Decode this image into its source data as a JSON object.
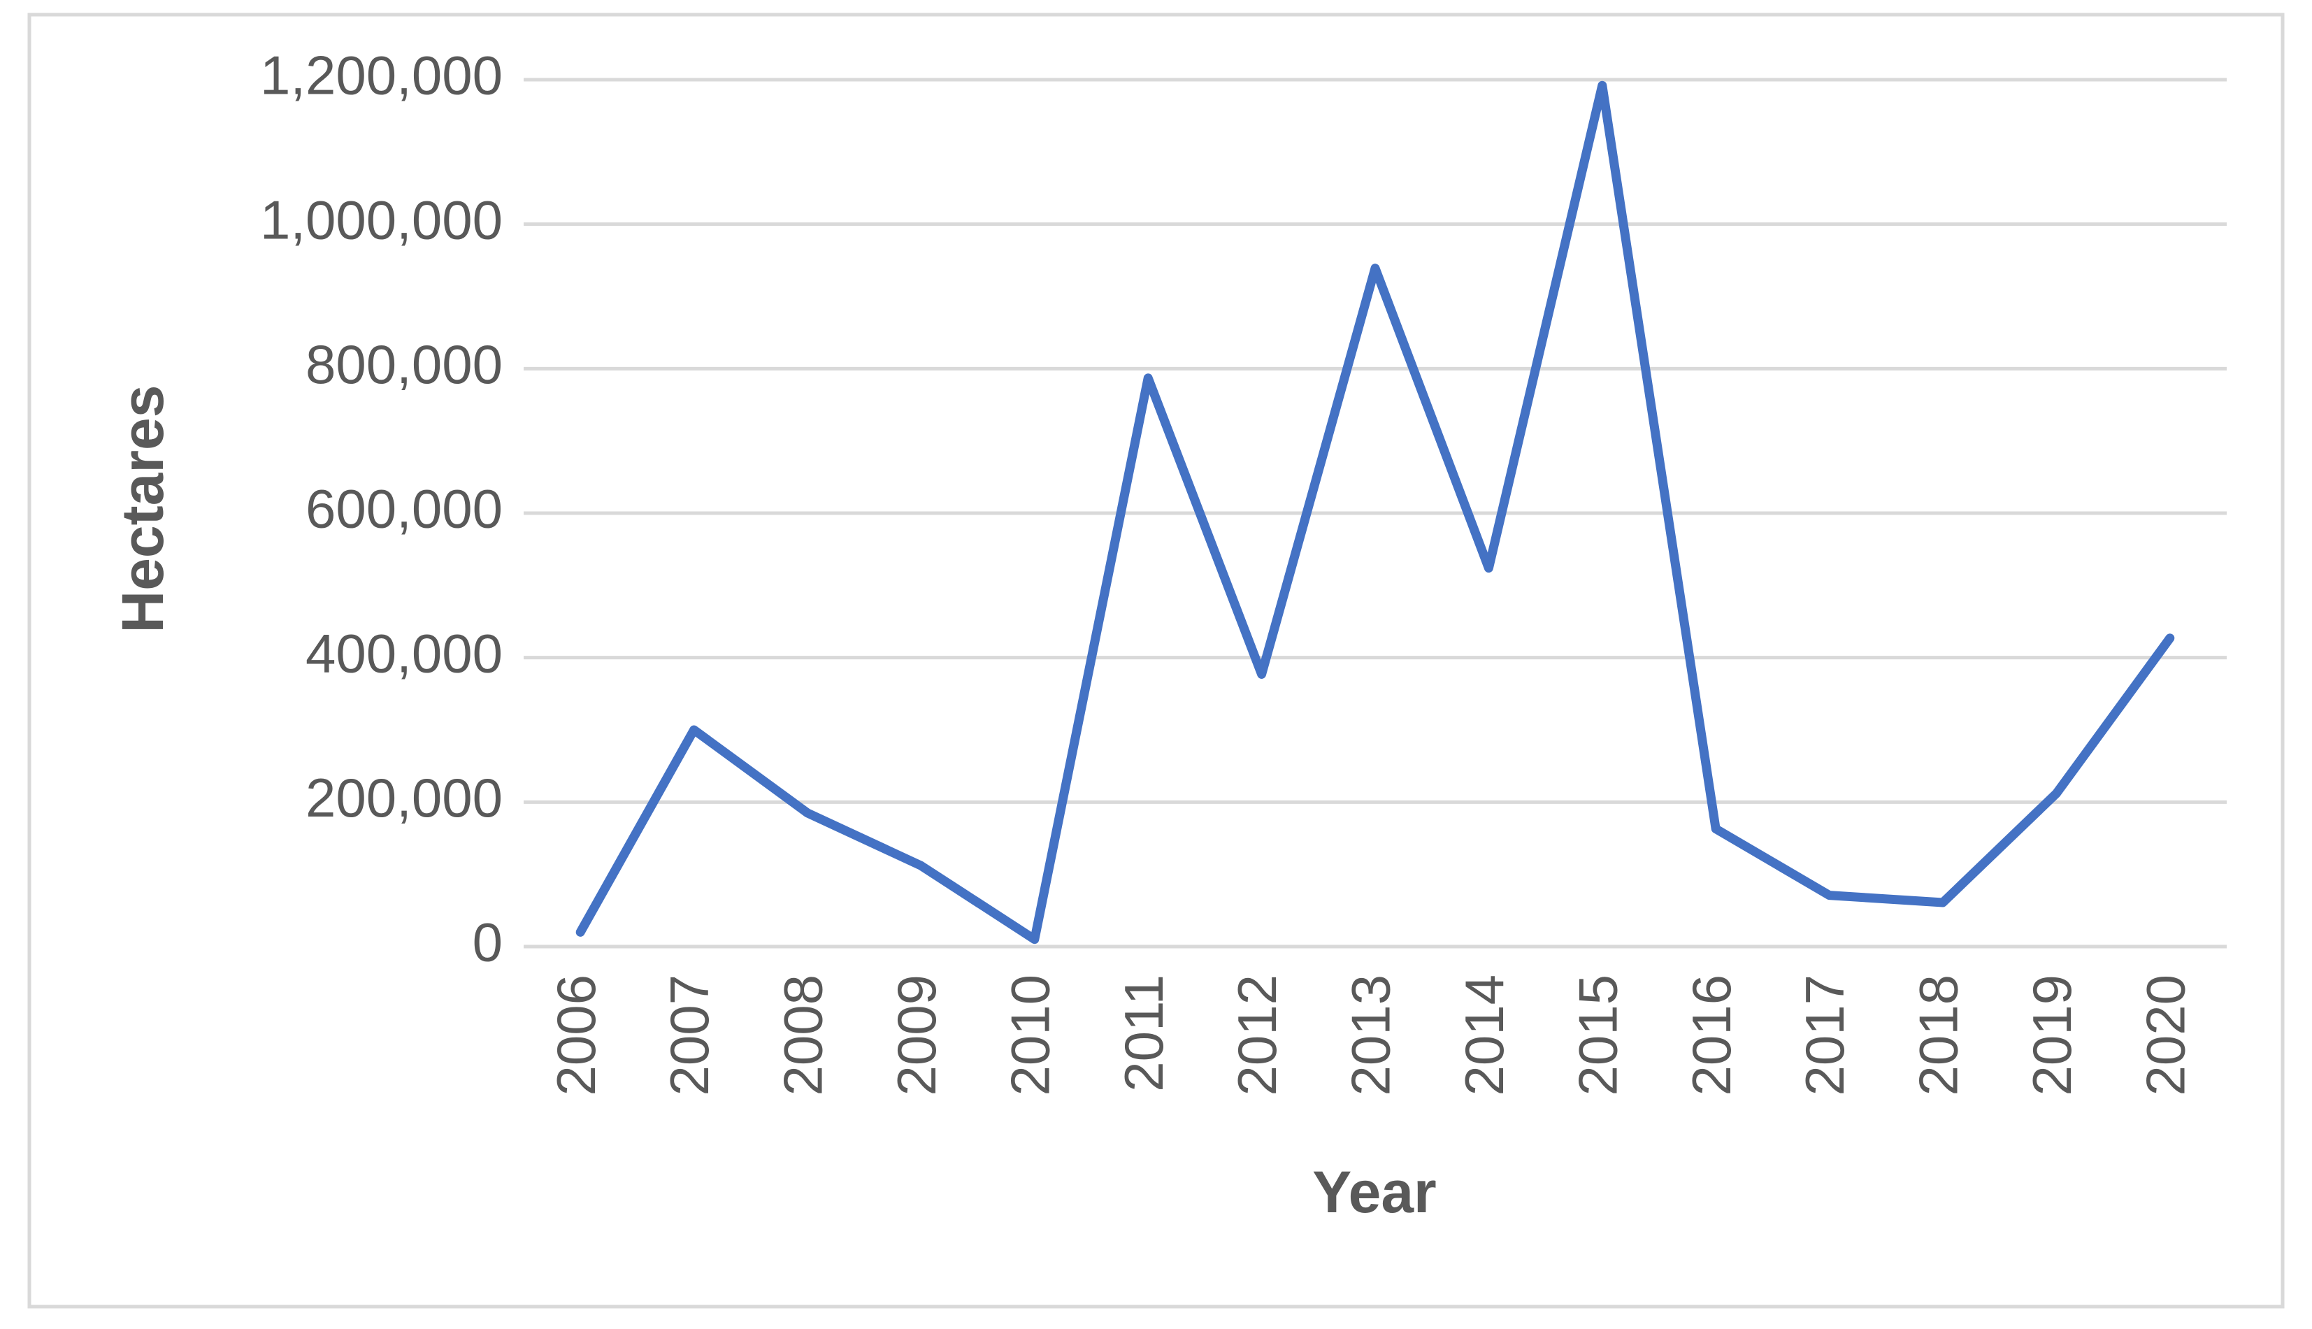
{
  "chart_data": {
    "type": "line",
    "x_label": "Year",
    "y_label": "Hectares",
    "categories": [
      "2006",
      "2007",
      "2008",
      "2009",
      "2010",
      "2011",
      "2012",
      "2013",
      "2014",
      "2015",
      "2016",
      "2017",
      "2018",
      "2019",
      "2020"
    ],
    "values": [
      20000,
      300000,
      185000,
      112000,
      10000,
      787000,
      377000,
      939000,
      524000,
      1192000,
      163000,
      71000,
      61000,
      212000,
      427000
    ],
    "color": "#4472c4",
    "ylim": [
      0,
      1200000
    ],
    "yticks": [
      0,
      {
        "value": 200000,
        "label": "200,000"
      },
      {
        "value": 400000,
        "label": "400,000"
      },
      {
        "value": 600000,
        "label": "600,000"
      },
      {
        "value": 800000,
        "label": "800,000"
      },
      {
        "value": 1000000,
        "label": "1,000,000"
      },
      {
        "value": 1200000,
        "label": "1,200,000"
      }
    ],
    "grid": true
  }
}
